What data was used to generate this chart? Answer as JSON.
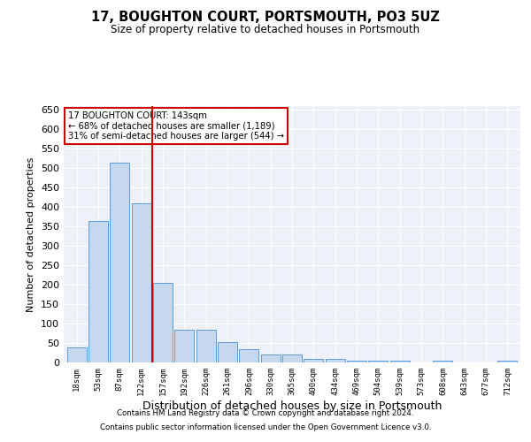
{
  "title": "17, BOUGHTON COURT, PORTSMOUTH, PO3 5UZ",
  "subtitle": "Size of property relative to detached houses in Portsmouth",
  "xlabel": "Distribution of detached houses by size in Portsmouth",
  "ylabel": "Number of detached properties",
  "bar_color": "#c5d8ed",
  "bar_edge_color": "#5b9bd5",
  "background_color": "#ffffff",
  "plot_bg_color": "#eef2f8",
  "grid_color": "#ffffff",
  "vline_color": "#cc0000",
  "vline_index": 3.5,
  "annotation_title": "17 BOUGHTON COURT: 143sqm",
  "annotation_line1": "← 68% of detached houses are smaller (1,189)",
  "annotation_line2": "31% of semi-detached houses are larger (544) →",
  "annotation_box_color": "#ffffff",
  "annotation_box_edge": "#cc0000",
  "categories": [
    "18sqm",
    "53sqm",
    "87sqm",
    "122sqm",
    "157sqm",
    "192sqm",
    "226sqm",
    "261sqm",
    "296sqm",
    "330sqm",
    "365sqm",
    "400sqm",
    "434sqm",
    "469sqm",
    "504sqm",
    "539sqm",
    "573sqm",
    "608sqm",
    "643sqm",
    "677sqm",
    "712sqm"
  ],
  "values": [
    38,
    365,
    515,
    410,
    205,
    85,
    85,
    52,
    35,
    20,
    20,
    10,
    8,
    5,
    5,
    5,
    0,
    5,
    0,
    0,
    5
  ],
  "ylim": [
    0,
    660
  ],
  "yticks": [
    0,
    50,
    100,
    150,
    200,
    250,
    300,
    350,
    400,
    450,
    500,
    550,
    600,
    650
  ],
  "footnote1": "Contains HM Land Registry data © Crown copyright and database right 2024.",
  "footnote2": "Contains public sector information licensed under the Open Government Licence v3.0."
}
